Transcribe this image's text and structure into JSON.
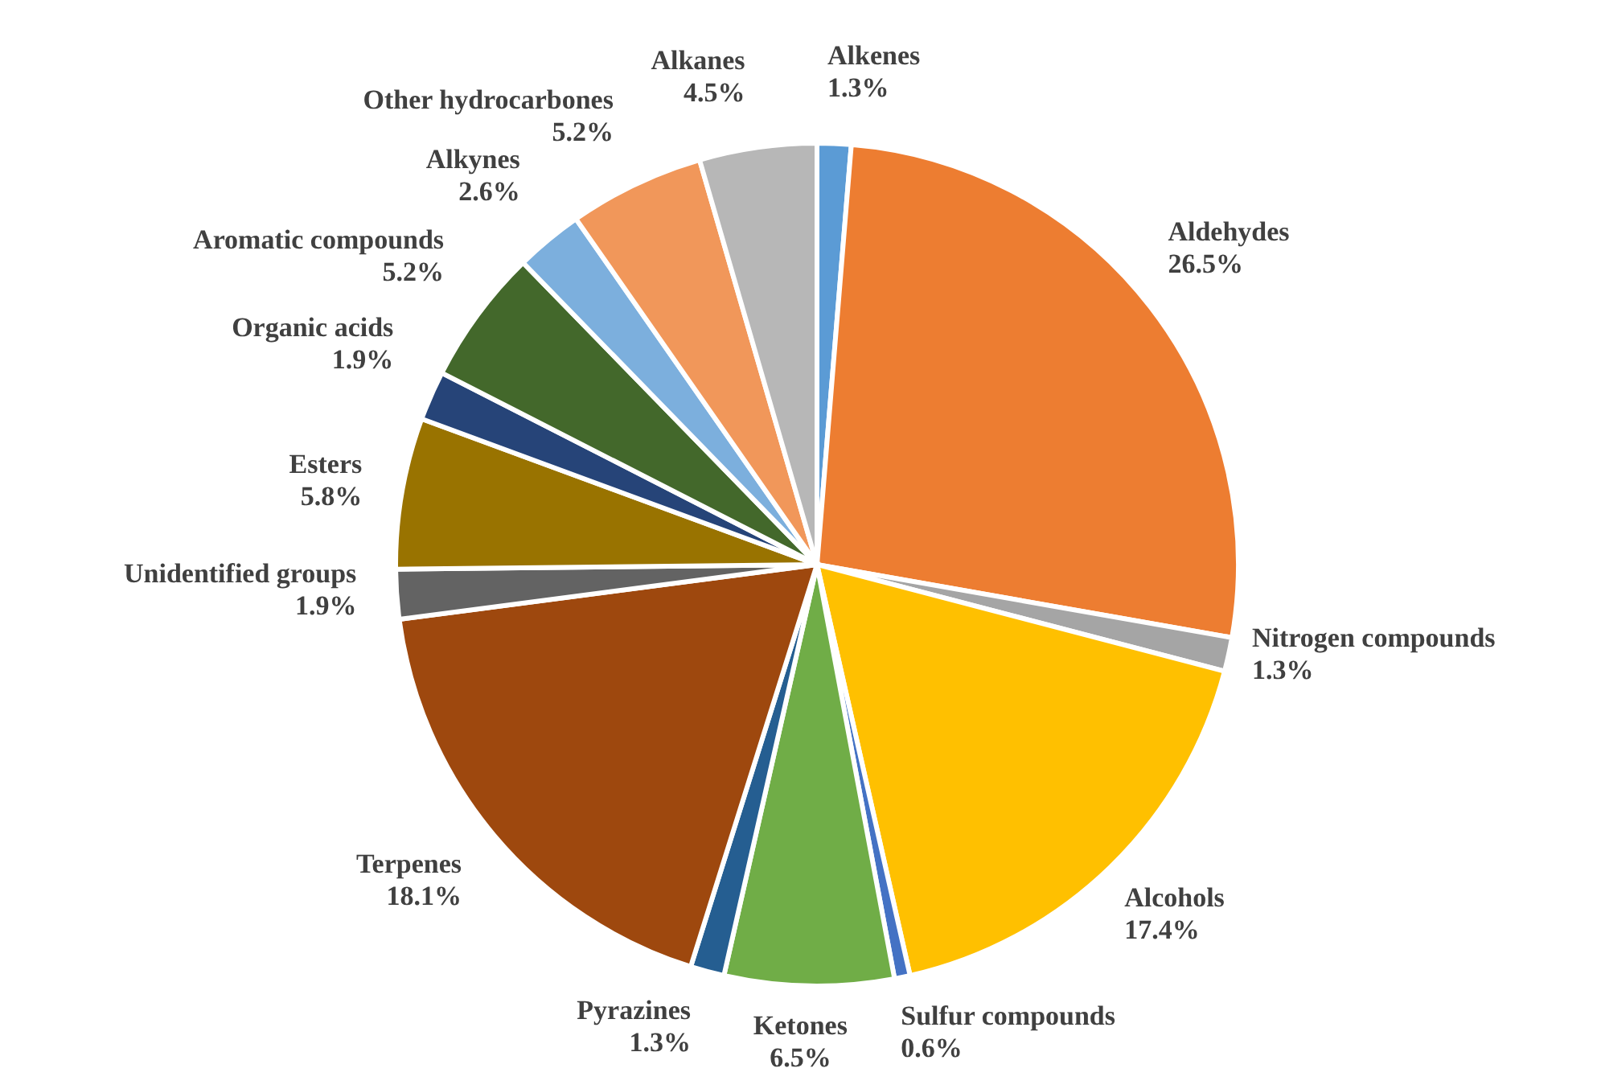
{
  "chart_data": {
    "type": "pie",
    "categories": [
      "Alkenes",
      "Aldehydes",
      "Nitrogen compounds",
      "Alcohols",
      "Sulfur compounds",
      "Ketones",
      "Pyrazines",
      "Terpenes",
      "Unidentified groups",
      "Esters",
      "Organic acids",
      "Aromatic compounds",
      "Alkynes",
      "Other hydrocarbones",
      "Alkanes"
    ],
    "values": [
      1.3,
      26.5,
      1.3,
      17.4,
      0.6,
      6.5,
      1.3,
      18.1,
      1.9,
      5.8,
      1.9,
      5.2,
      2.6,
      5.2,
      4.5
    ],
    "value_labels": [
      "1.3%",
      "26.5%",
      "1.3%",
      "17.4%",
      "0.6%",
      "6.5%",
      "1.3%",
      "18.1%",
      "1.9%",
      "5.8%",
      "1.9%",
      "5.2%",
      "2.6%",
      "5.2%",
      "4.5%"
    ],
    "colors": [
      "#5b9bd5",
      "#ed7d31",
      "#a5a5a5",
      "#ffc000",
      "#4472c4",
      "#70ad47",
      "#255e91",
      "#9e480e",
      "#636363",
      "#997300",
      "#264478",
      "#43682b",
      "#7cafdd",
      "#f1975a",
      "#b7b7b7"
    ],
    "legend": false
  }
}
